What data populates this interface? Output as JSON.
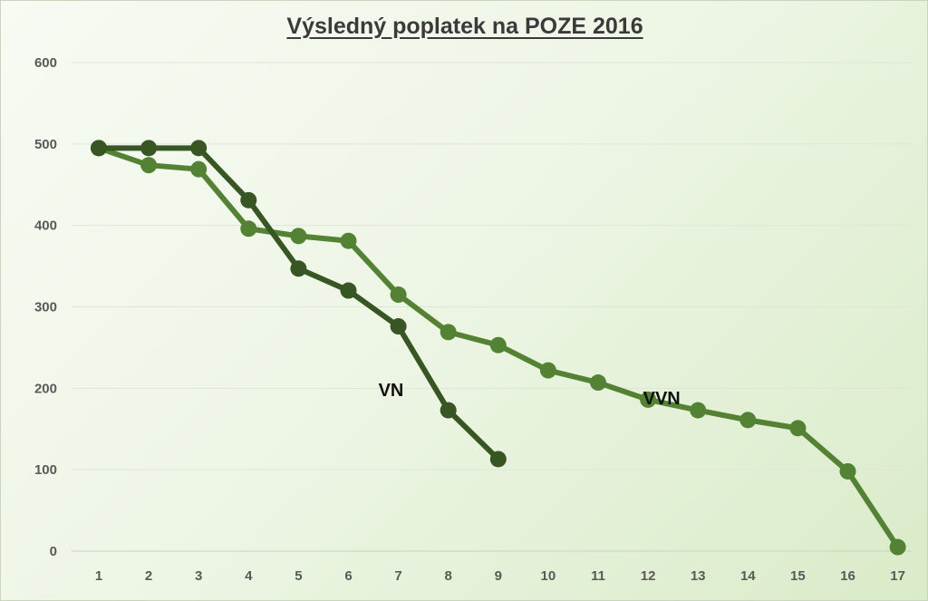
{
  "chart_data": {
    "type": "line",
    "title": "Výsledný poplatek na POZE 2016",
    "xlabel": "",
    "ylabel": "",
    "x": [
      1,
      2,
      3,
      4,
      5,
      6,
      7,
      8,
      9,
      10,
      11,
      12,
      13,
      14,
      15,
      16,
      17
    ],
    "ylim": [
      0,
      600
    ],
    "yticks": [
      0,
      100,
      200,
      300,
      400,
      500,
      600
    ],
    "grid": true,
    "legend": "none",
    "series": [
      {
        "name": "VN",
        "color": "#375623",
        "x": [
          1,
          2,
          3,
          4,
          5,
          6,
          7,
          8,
          9
        ],
        "values": [
          495,
          495,
          495,
          431,
          347,
          320,
          276,
          173,
          113
        ]
      },
      {
        "name": "VVN",
        "color": "#548235",
        "x": [
          1,
          2,
          3,
          4,
          5,
          6,
          7,
          8,
          9,
          10,
          11,
          12,
          13,
          14,
          15,
          16,
          17
        ],
        "values": [
          495,
          474,
          469,
          396,
          387,
          381,
          315,
          269,
          253,
          222,
          207,
          186,
          173,
          161,
          151,
          98,
          5
        ]
      }
    ]
  }
}
